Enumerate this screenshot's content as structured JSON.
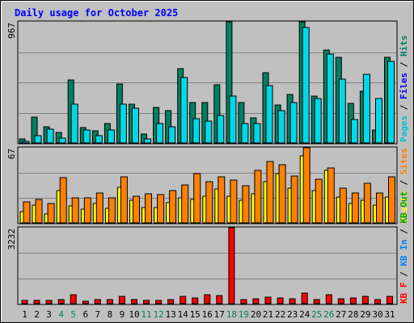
{
  "chart_data": {
    "type": "bar",
    "title": "Daily usage for October 2025",
    "categories": [
      "1",
      "2",
      "3",
      "4",
      "5",
      "6",
      "7",
      "8",
      "9",
      "10",
      "11",
      "12",
      "13",
      "14",
      "15",
      "16",
      "17",
      "18",
      "19",
      "20",
      "21",
      "22",
      "23",
      "24",
      "25",
      "26",
      "27",
      "28",
      "29",
      "30",
      "31"
    ],
    "weekend_days": [
      "4",
      "5",
      "11",
      "12",
      "18",
      "19",
      "25",
      "26"
    ],
    "colors": {
      "background": "#c0c0c0",
      "border": "#808080",
      "title": "#0000ff",
      "hits": "#00805f",
      "files": "#0000ff",
      "pages": "#00c0d0",
      "visits": "#ffff00",
      "sites": "#ff8000",
      "kbin": "#00a000",
      "kbout": "#0080ff",
      "kbf": "#ff0000",
      "weekday_label": "#000000",
      "weekend_label": "#00805f"
    },
    "panels": [
      {
        "name": "hits-files-pages",
        "max_label": "967",
        "ymax": 967,
        "legend": [
          {
            "label": "Pages",
            "color": "#00c0d0"
          },
          {
            "label": "Files",
            "color": "#0000ff"
          },
          {
            "label": "Hits",
            "color": "#00805f"
          }
        ],
        "series": [
          {
            "name": "Hits",
            "color": "#00805f",
            "values": [
              33,
              204,
              130,
              83,
              505,
              123,
              99,
              155,
              469,
              310,
              71,
              285,
              256,
              596,
              325,
              325,
              461,
              967,
              322,
              201,
              563,
              300,
              390,
              967,
              373,
              742,
              686,
              313,
              412,
              104,
              683
            ]
          },
          {
            "name": "Pages",
            "color": "#00d8e8",
            "values": [
              14,
              61,
              107,
              41,
              312,
              104,
              57,
              103,
              310,
              279,
              32,
              152,
              131,
              522,
              193,
              177,
              219,
              377,
              156,
              156,
              457,
              260,
              325,
              921,
              357,
              709,
              509,
              185,
              545,
              356,
              650
            ]
          }
        ]
      },
      {
        "name": "visits-sites",
        "max_label": "67",
        "ymax": 67,
        "legend": [
          {
            "label": "Visits",
            "color": "#ffff00"
          },
          {
            "label": "Sites",
            "color": "#ff8000"
          }
        ],
        "series": [
          {
            "name": "Visits",
            "color": "#ffff00",
            "values": [
              10,
              16,
              8,
              29,
              15,
              12,
              17,
              13,
              32,
              20,
              14,
              14,
              18,
              22,
              21,
              24,
              30,
              24,
              20,
              26,
              37,
              44,
              31,
              60,
              29,
              47,
              23,
              17,
              20,
              16,
              23
            ]
          },
          {
            "name": "Sites",
            "color": "#ff8000",
            "values": [
              19,
              21,
              17,
              40,
              22,
              22,
              27,
              22,
              41,
              24,
              26,
              25,
              29,
              34,
              44,
              37,
              41,
              38,
              33,
              47,
              55,
              52,
              42,
              67,
              39,
              49,
              31,
              27,
              35,
              27,
              41
            ]
          }
        ]
      },
      {
        "name": "kbytes",
        "max_label": "3232",
        "ymax": 3232,
        "legend": [
          {
            "label": "KB F",
            "color": "#ff0000"
          },
          {
            "label": "KB In",
            "color": "#0080ff"
          },
          {
            "label": "KB Out",
            "color": "#00a000"
          }
        ],
        "series": [
          {
            "name": "KB F",
            "color": "#ff0000",
            "values": [
              146,
              149,
              151,
              156,
              367,
              108,
              163,
              176,
              306,
              181,
              149,
              152,
              188,
              299,
              239,
              391,
              344,
              3232,
              186,
              215,
              283,
              228,
              219,
              443,
              180,
              367,
              198,
              251,
              294,
              162,
              326
            ]
          }
        ]
      }
    ]
  }
}
